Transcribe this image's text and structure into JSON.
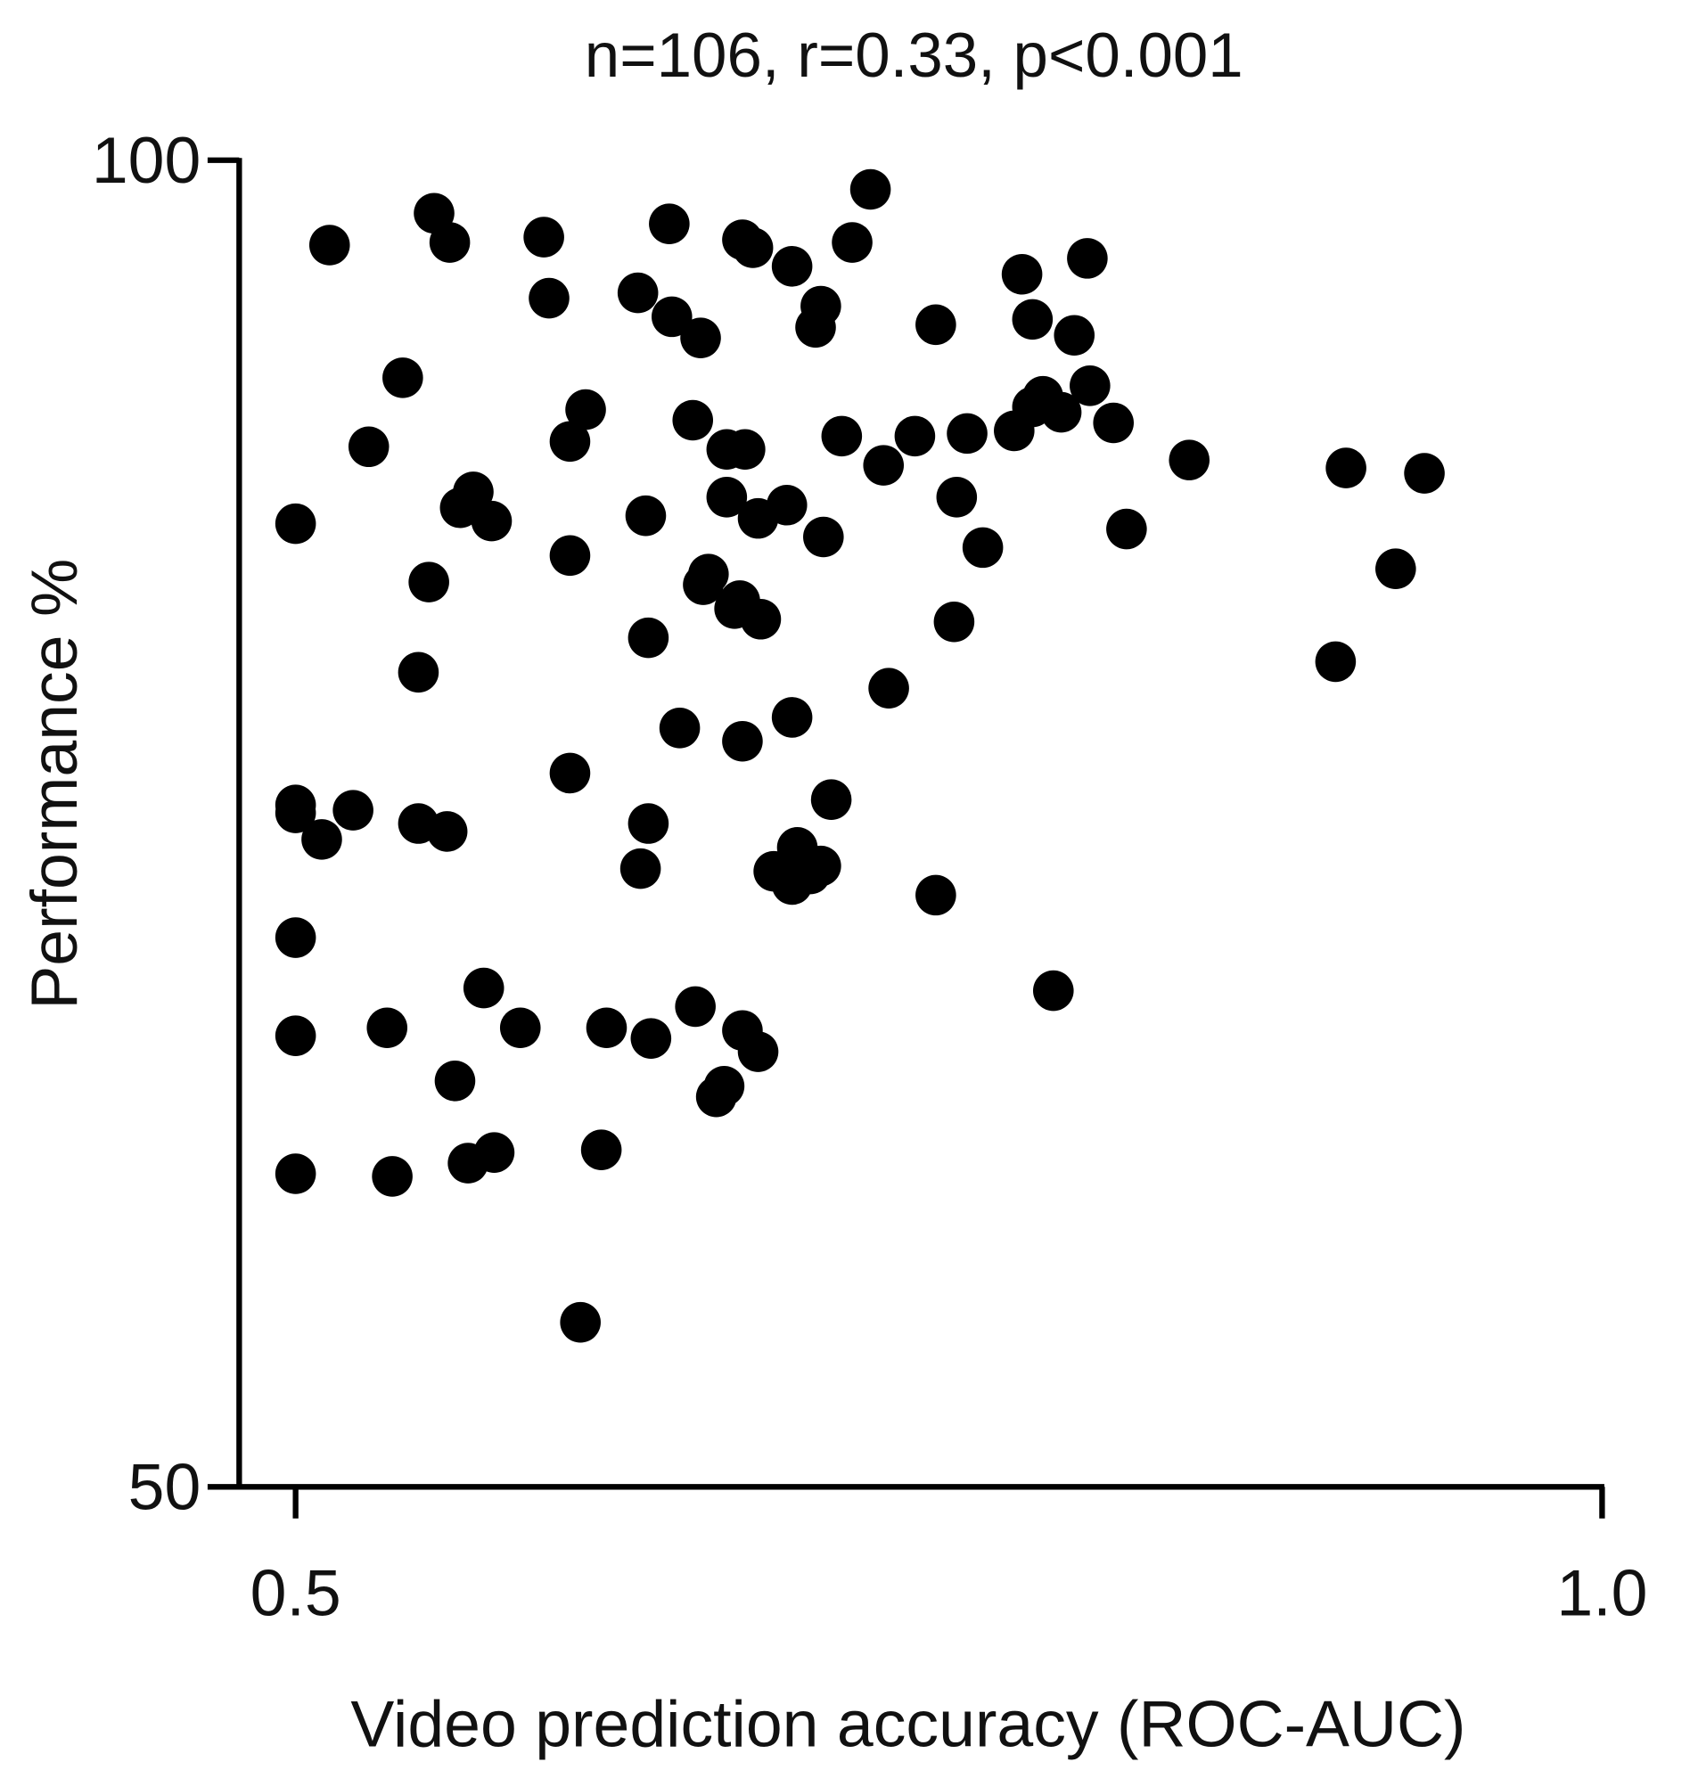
{
  "chart_data": {
    "type": "scatter",
    "title": "n=106, r=0.33, p<0.001",
    "xlabel": "Video prediction accuracy (ROC-AUC)",
    "ylabel": "Performance %",
    "xlim": [
      0.5,
      1.0
    ],
    "ylim": [
      50,
      100
    ],
    "xticks": [
      {
        "value": 0.5,
        "label": "0.5"
      },
      {
        "value": 1.0,
        "label": "1.0"
      }
    ],
    "yticks": [
      {
        "value": 100,
        "label": "100"
      },
      {
        "value": 50,
        "label": "50"
      }
    ],
    "grid": false,
    "marker_color": "#000000",
    "points": [
      [
        0.513,
        96.8
      ],
      [
        0.553,
        98.0
      ],
      [
        0.559,
        96.9
      ],
      [
        0.595,
        97.1
      ],
      [
        0.597,
        94.8
      ],
      [
        0.643,
        97.6
      ],
      [
        0.671,
        97.0
      ],
      [
        0.675,
        96.7
      ],
      [
        0.69,
        96.0
      ],
      [
        0.72,
        98.9
      ],
      [
        0.713,
        96.9
      ],
      [
        0.631,
        95.0
      ],
      [
        0.644,
        94.1
      ],
      [
        0.655,
        93.3
      ],
      [
        0.701,
        94.5
      ],
      [
        0.699,
        93.7
      ],
      [
        0.745,
        93.8
      ],
      [
        0.778,
        95.7
      ],
      [
        0.803,
        96.3
      ],
      [
        0.782,
        94.0
      ],
      [
        0.798,
        93.4
      ],
      [
        0.804,
        91.5
      ],
      [
        0.786,
        91.1
      ],
      [
        0.793,
        90.5
      ],
      [
        0.775,
        89.8
      ],
      [
        0.813,
        90.1
      ],
      [
        0.541,
        91.8
      ],
      [
        0.528,
        89.2
      ],
      [
        0.611,
        90.6
      ],
      [
        0.605,
        89.4
      ],
      [
        0.652,
        90.2
      ],
      [
        0.665,
        89.1
      ],
      [
        0.672,
        89.1
      ],
      [
        0.709,
        89.6
      ],
      [
        0.737,
        89.6
      ],
      [
        0.757,
        89.7
      ],
      [
        0.725,
        88.5
      ],
      [
        0.842,
        88.7
      ],
      [
        0.902,
        88.4
      ],
      [
        0.932,
        88.2
      ],
      [
        0.5,
        86.3
      ],
      [
        0.568,
        87.5
      ],
      [
        0.563,
        86.9
      ],
      [
        0.575,
        86.4
      ],
      [
        0.634,
        86.6
      ],
      [
        0.665,
        87.3
      ],
      [
        0.688,
        87.0
      ],
      [
        0.677,
        86.5
      ],
      [
        0.702,
        85.8
      ],
      [
        0.753,
        87.3
      ],
      [
        0.763,
        85.4
      ],
      [
        0.818,
        86.1
      ],
      [
        0.605,
        85.1
      ],
      [
        0.551,
        84.1
      ],
      [
        0.658,
        84.4
      ],
      [
        0.656,
        84.0
      ],
      [
        0.67,
        83.4
      ],
      [
        0.678,
        82.7
      ],
      [
        0.635,
        82.0
      ],
      [
        0.752,
        82.6
      ],
      [
        0.921,
        84.6
      ],
      [
        0.898,
        81.1
      ],
      [
        0.547,
        80.7
      ],
      [
        0.727,
        80.1
      ],
      [
        0.69,
        79.0
      ],
      [
        0.647,
        78.6
      ],
      [
        0.671,
        78.1
      ],
      [
        0.605,
        76.9
      ],
      [
        0.5,
        75.7
      ],
      [
        0.5,
        75.4
      ],
      [
        0.522,
        75.5
      ],
      [
        0.51,
        74.4
      ],
      [
        0.547,
        75.0
      ],
      [
        0.558,
        74.7
      ],
      [
        0.635,
        75.0
      ],
      [
        0.632,
        73.3
      ],
      [
        0.705,
        75.9
      ],
      [
        0.692,
        74.1
      ],
      [
        0.701,
        73.4
      ],
      [
        0.683,
        73.2
      ],
      [
        0.69,
        72.7
      ],
      [
        0.745,
        72.3
      ],
      [
        0.5,
        70.7
      ],
      [
        0.572,
        68.8
      ],
      [
        0.79,
        68.7
      ],
      [
        0.5,
        67.0
      ],
      [
        0.535,
        67.3
      ],
      [
        0.586,
        67.3
      ],
      [
        0.619,
        67.3
      ],
      [
        0.636,
        66.9
      ],
      [
        0.653,
        68.1
      ],
      [
        0.671,
        67.2
      ],
      [
        0.677,
        66.4
      ],
      [
        0.561,
        65.3
      ],
      [
        0.661,
        64.7
      ],
      [
        0.664,
        65.1
      ],
      [
        0.5,
        61.8
      ],
      [
        0.537,
        61.7
      ],
      [
        0.566,
        62.2
      ],
      [
        0.576,
        62.6
      ],
      [
        0.617,
        62.7
      ],
      [
        0.609,
        56.2
      ],
      [
        0.697,
        73.1
      ],
      [
        0.782,
        90.7
      ],
      [
        0.668,
        83.1
      ],
      [
        0.786,
        90.9
      ]
    ]
  }
}
